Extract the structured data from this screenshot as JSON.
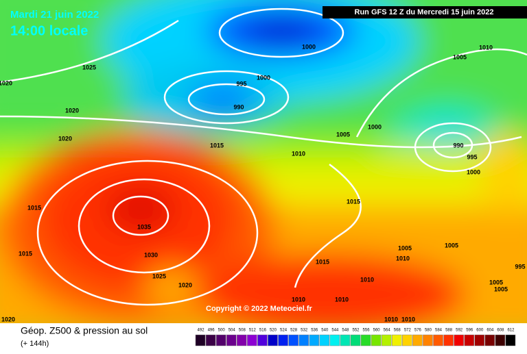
{
  "header": {
    "date": "Mardi 21 juin 2022",
    "time": "14:00 locale",
    "run": "Run GFS 12 Z du Mercredi 15 juin 2022"
  },
  "copyright": "Copyright © 2022 Meteociel.fr",
  "isobar_labels": [
    "1000",
    "1025",
    "1020",
    "995",
    "1000",
    "990",
    "1020",
    "1005",
    "1010",
    "1000",
    "1005",
    "1020",
    "1015",
    "1010",
    "990",
    "995",
    "1000",
    "1015",
    "1015",
    "1035",
    "1015",
    "1030",
    "1025",
    "1020",
    "1015",
    "1005",
    "1010",
    "1005",
    "995",
    "1005",
    "1005",
    "1010",
    "1010",
    "1010",
    "1010",
    "1010",
    "1020"
  ],
  "legend": {
    "title": "Géop. Z500 & pression au sol",
    "lead": "(+ 144h)",
    "levels": [
      "492",
      "496",
      "500",
      "504",
      "508",
      "512",
      "516",
      "520",
      "524",
      "528",
      "532",
      "536",
      "540",
      "544",
      "548",
      "552",
      "556",
      "560",
      "564",
      "568",
      "572",
      "576",
      "580",
      "584",
      "588",
      "592",
      "596",
      "600",
      "604",
      "608",
      "612"
    ],
    "colors": [
      "#1e0025",
      "#3a0046",
      "#52006a",
      "#6a008c",
      "#8200aa",
      "#8c00d2",
      "#5000dc",
      "#0000c8",
      "#0020f0",
      "#0050ff",
      "#0080ff",
      "#00aaff",
      "#00d2ff",
      "#00f0f0",
      "#00e6b4",
      "#00dc78",
      "#28dc28",
      "#78e600",
      "#b4f000",
      "#f0f000",
      "#ffd200",
      "#ffaa00",
      "#ff8200",
      "#ff5a00",
      "#ff3200",
      "#f00000",
      "#c80000",
      "#a00000",
      "#780000",
      "#3c0000",
      "#000000"
    ]
  }
}
